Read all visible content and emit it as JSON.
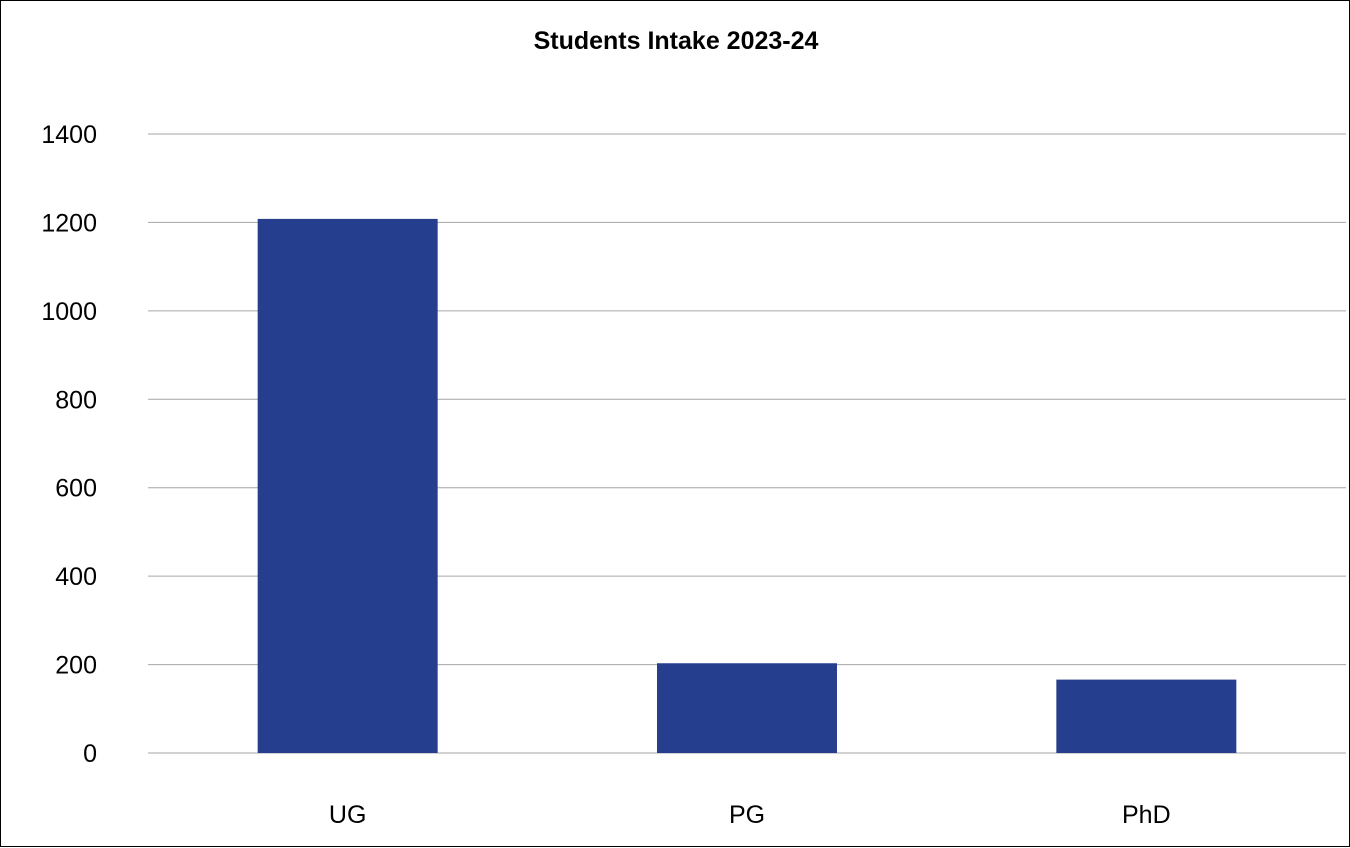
{
  "chart_data": {
    "type": "bar",
    "title": "Students Intake 2023-24",
    "xlabel": "",
    "ylabel": "",
    "categories": [
      "UG",
      "PG",
      "PhD"
    ],
    "values": [
      1208,
      203,
      166
    ],
    "ylim": [
      0,
      1400
    ],
    "yticks": [
      0,
      200,
      400,
      600,
      800,
      1000,
      1200,
      1400
    ],
    "grid": true,
    "legend": "none",
    "bar_color": "#253F8E",
    "grid_color": "#A6A6A6"
  }
}
